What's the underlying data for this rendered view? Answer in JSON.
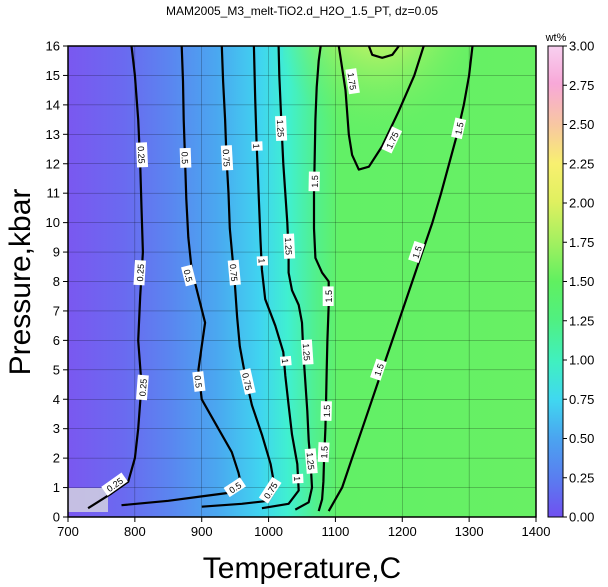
{
  "chart_data": {
    "type": "heatmap",
    "title": "MAM2005_M3_melt-TiO2.d_H2O_1.5_PT, dz=0.05",
    "xlabel": "Temperature,C",
    "ylabel": "Pressure,kbar",
    "xlim": [
      700,
      1400
    ],
    "ylim": [
      0,
      16
    ],
    "x_ticks": [
      "700",
      "800",
      "900",
      "1000",
      "1100",
      "1200",
      "1300",
      "1400"
    ],
    "y_ticks": [
      "0",
      "1",
      "2",
      "3",
      "4",
      "5",
      "6",
      "7",
      "8",
      "9",
      "10",
      "11",
      "12",
      "13",
      "14",
      "15",
      "16"
    ],
    "grid": true,
    "colorbar": {
      "label": "wt%",
      "range": [
        0,
        3
      ],
      "ticks": [
        "0.00",
        "0.25",
        "0.50",
        "0.75",
        "1.00",
        "1.25",
        "1.50",
        "1.75",
        "2.00",
        "2.25",
        "2.50",
        "2.75",
        "3.00"
      ],
      "colors": [
        "#7050f0",
        "#5a7cf0",
        "#4aa6f0",
        "#40d8f0",
        "#40f0c0",
        "#50f080",
        "#60f060",
        "#a0f060",
        "#e0f060",
        "#f8f070",
        "#f8c8a0",
        "#f8a8d8",
        "#f8d0f0"
      ]
    },
    "contour_levels_labeled": [
      "0.25",
      "0.5",
      "0.75",
      "1",
      "1.25",
      "1.5",
      "1.75"
    ],
    "contours": [
      {
        "level": "0.25",
        "points": [
          [
            730,
            0.3
          ],
          [
            765,
            0.8
          ],
          [
            790,
            1.2
          ],
          [
            800,
            2.0
          ],
          [
            805,
            3.0
          ],
          [
            810,
            4.5
          ],
          [
            805,
            6.0
          ],
          [
            808,
            7.5
          ],
          [
            812,
            9.0
          ],
          [
            810,
            10.5
          ],
          [
            808,
            12.0
          ],
          [
            805,
            13.5
          ],
          [
            800,
            15.0
          ],
          [
            795,
            16.0
          ]
        ],
        "labels": [
          {
            "x": 810,
            "y": 12.3
          },
          {
            "x": 808,
            "y": 8.3
          },
          {
            "x": 812,
            "y": 4.4
          },
          {
            "x": 770,
            "y": 1.1
          }
        ]
      },
      {
        "level": "0.5",
        "points": [
          [
            780,
            0.4
          ],
          [
            850,
            0.55
          ],
          [
            900,
            0.7
          ],
          [
            950,
            0.85
          ],
          [
            960,
            1.0
          ],
          [
            955,
            1.5
          ],
          [
            945,
            2.2
          ],
          [
            925,
            3.0
          ],
          [
            900,
            4.0
          ],
          [
            895,
            5.0
          ],
          [
            900,
            5.8
          ],
          [
            905,
            6.6
          ],
          [
            895,
            7.5
          ],
          [
            885,
            8.4
          ],
          [
            880,
            9.5
          ],
          [
            877,
            10.8
          ],
          [
            875,
            12.2
          ],
          [
            873,
            13.5
          ],
          [
            872,
            14.8
          ],
          [
            870,
            16.0
          ]
        ],
        "labels": [
          {
            "x": 875,
            "y": 12.2
          },
          {
            "x": 880,
            "y": 8.2
          },
          {
            "x": 895,
            "y": 4.6
          },
          {
            "x": 950,
            "y": 1.0
          }
        ]
      },
      {
        "level": "0.75",
        "points": [
          [
            900,
            0.35
          ],
          [
            960,
            0.45
          ],
          [
            1000,
            0.55
          ],
          [
            1010,
            0.9
          ],
          [
            1003,
            1.8
          ],
          [
            990,
            2.8
          ],
          [
            975,
            3.8
          ],
          [
            965,
            4.8
          ],
          [
            957,
            5.8
          ],
          [
            953,
            6.8
          ],
          [
            950,
            7.8
          ],
          [
            946,
            8.8
          ],
          [
            942,
            9.8
          ],
          [
            940,
            11.0
          ],
          [
            937,
            12.2
          ],
          [
            935,
            13.5
          ],
          [
            932,
            14.8
          ],
          [
            930,
            16.0
          ]
        ],
        "labels": [
          {
            "x": 937,
            "y": 12.2
          },
          {
            "x": 948,
            "y": 8.3
          },
          {
            "x": 968,
            "y": 4.6
          },
          {
            "x": 1003,
            "y": 0.9
          }
        ]
      },
      {
        "level": "1",
        "points": [
          [
            990,
            0.3
          ],
          [
            1030,
            0.45
          ],
          [
            1045,
            0.9
          ],
          [
            1043,
            1.8
          ],
          [
            1035,
            2.8
          ],
          [
            1030,
            3.8
          ],
          [
            1025,
            4.8
          ],
          [
            1022,
            5.6
          ],
          [
            1010,
            6.5
          ],
          [
            995,
            7.4
          ],
          [
            990,
            8.4
          ],
          [
            988,
            9.4
          ],
          [
            986,
            10.5
          ],
          [
            984,
            11.6
          ],
          [
            982,
            12.8
          ],
          [
            980,
            14.2
          ],
          [
            978,
            16.0
          ]
        ],
        "labels": [
          {
            "x": 982,
            "y": 12.6
          },
          {
            "x": 990,
            "y": 8.7
          },
          {
            "x": 1025,
            "y": 5.3
          },
          {
            "x": 1043,
            "y": 1.3
          }
        ]
      },
      {
        "level": "1.25",
        "points": [
          [
            1040,
            0.25
          ],
          [
            1060,
            0.5
          ],
          [
            1065,
            1.0
          ],
          [
            1063,
            1.8
          ],
          [
            1060,
            2.6
          ],
          [
            1058,
            3.6
          ],
          [
            1055,
            4.6
          ],
          [
            1052,
            5.6
          ],
          [
            1050,
            6.6
          ],
          [
            1045,
            7.2
          ],
          [
            1035,
            7.7
          ],
          [
            1030,
            8.3
          ],
          [
            1030,
            9.0
          ],
          [
            1028,
            10.0
          ],
          [
            1025,
            11.0
          ],
          [
            1022,
            12.0
          ],
          [
            1020,
            13.0
          ],
          [
            1018,
            14.0
          ],
          [
            1016,
            15.0
          ],
          [
            1015,
            16.0
          ]
        ],
        "labels": [
          {
            "x": 1018,
            "y": 13.2
          },
          {
            "x": 1030,
            "y": 9.2
          },
          {
            "x": 1057,
            "y": 5.6
          },
          {
            "x": 1063,
            "y": 1.9
          }
        ]
      },
      {
        "level": "1.5",
        "points": [
          [
            1075,
            0.2
          ],
          [
            1080,
            0.6
          ],
          [
            1082,
            1.2
          ],
          [
            1083,
            2.0
          ],
          [
            1085,
            3.0
          ],
          [
            1086,
            4.0
          ],
          [
            1087,
            5.0
          ],
          [
            1088,
            6.0
          ],
          [
            1090,
            7.2
          ],
          [
            1090,
            8.0
          ],
          [
            1080,
            8.3
          ],
          [
            1070,
            8.8
          ],
          [
            1068,
            9.8
          ],
          [
            1068,
            11.0
          ],
          [
            1069,
            12.2
          ],
          [
            1070,
            13.5
          ],
          [
            1072,
            14.6
          ],
          [
            1075,
            15.5
          ],
          [
            1078,
            16.0
          ]
        ],
        "labels": [
          {
            "x": 1069,
            "y": 11.4
          },
          {
            "x": 1090,
            "y": 7.5
          },
          {
            "x": 1087,
            "y": 3.6
          },
          {
            "x": 1083,
            "y": 2.2
          }
        ]
      },
      {
        "level": "1.5",
        "points": [
          [
            1090,
            0.2
          ],
          [
            1110,
            1.0
          ],
          [
            1125,
            2.0
          ],
          [
            1140,
            3.0
          ],
          [
            1155,
            4.0
          ],
          [
            1170,
            5.0
          ],
          [
            1185,
            6.0
          ],
          [
            1200,
            7.0
          ],
          [
            1215,
            8.0
          ],
          [
            1230,
            9.0
          ],
          [
            1245,
            10.0
          ],
          [
            1258,
            11.0
          ],
          [
            1270,
            12.0
          ],
          [
            1282,
            13.0
          ],
          [
            1292,
            14.0
          ],
          [
            1300,
            15.0
          ],
          [
            1305,
            16.0
          ]
        ],
        "labels": [
          {
            "x": 1165,
            "y": 5.0
          },
          {
            "x": 1222,
            "y": 9.0
          },
          {
            "x": 1285,
            "y": 13.2
          }
        ]
      },
      {
        "level": "1.75",
        "points": [
          [
            1105,
            16.0
          ],
          [
            1115,
            14.5
          ],
          [
            1120,
            13.0
          ],
          [
            1125,
            12.3
          ],
          [
            1135,
            11.8
          ],
          [
            1150,
            11.9
          ],
          [
            1170,
            12.6
          ],
          [
            1195,
            13.8
          ],
          [
            1218,
            15.0
          ],
          [
            1232,
            16.0
          ]
        ],
        "labels": [
          {
            "x": 1125,
            "y": 14.8
          },
          {
            "x": 1185,
            "y": 12.8
          }
        ]
      },
      {
        "level": "2",
        "points": [
          [
            1150,
            16.0
          ],
          [
            1155,
            15.7
          ],
          [
            1170,
            15.6
          ],
          [
            1185,
            15.7
          ],
          [
            1195,
            16.0
          ]
        ],
        "labels": []
      }
    ]
  }
}
